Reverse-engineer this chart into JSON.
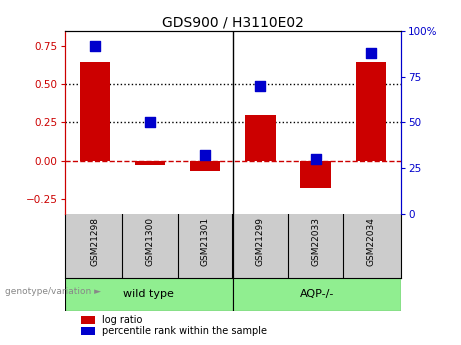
{
  "title": "GDS900 / H3110E02",
  "samples": [
    "GSM21298",
    "GSM21300",
    "GSM21301",
    "GSM21299",
    "GSM22033",
    "GSM22034"
  ],
  "log_ratio": [
    0.65,
    -0.03,
    -0.07,
    0.3,
    -0.18,
    0.65
  ],
  "percentile_rank": [
    92,
    50,
    32,
    70,
    30,
    88
  ],
  "group_labels": [
    "wild type",
    "AQP-/-"
  ],
  "group_color": "#90ee90",
  "group_separator_idx": 3,
  "ylim_left": [
    -0.35,
    0.85
  ],
  "ylim_right": [
    0,
    100
  ],
  "yticks_left": [
    -0.25,
    0.0,
    0.25,
    0.5,
    0.75
  ],
  "yticks_right": [
    0,
    25,
    50,
    75,
    100
  ],
  "bar_color": "#cc0000",
  "dot_color": "#0000cc",
  "zero_line_color": "#cc0000",
  "grid_line_color": "#000000",
  "bg_color_main": "#ffffff",
  "bg_color_samples": "#cccccc",
  "bar_width": 0.55,
  "dot_size": 45,
  "genotype_label": "genotype/variation"
}
